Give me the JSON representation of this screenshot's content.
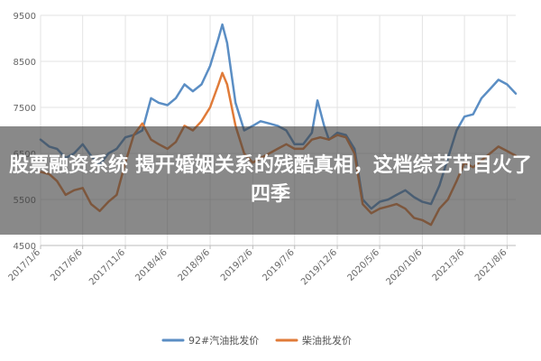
{
  "overlay": {
    "title": "股票融资系统 揭开婚姻关系的残酷真相，这档综艺节目火了四季"
  },
  "chart_data": {
    "type": "line",
    "ylim": [
      4500,
      9500
    ],
    "yticks": [
      4500,
      5500,
      6500,
      7500,
      8500,
      9500
    ],
    "ytick_labels": [
      "4500",
      "5500",
      "6500",
      "7500",
      "8500",
      "9500"
    ],
    "xlim": [
      "2017-01-06",
      "2021-09-06"
    ],
    "xticks": [
      "2017-01-06",
      "2017-06-06",
      "2017-11-06",
      "2018-04-06",
      "2018-09-06",
      "2019-02-06",
      "2019-07-06",
      "2019-12-06",
      "2020-05-06",
      "2020-10-06",
      "2021-03-06",
      "2021-08-06"
    ],
    "xtick_labels": [
      "2017/1/6",
      "2017/6/6",
      "2017/11/6",
      "2018/4/6",
      "2018/9/6",
      "2019/2/6",
      "2019/7/6",
      "2019/12/6",
      "2020/5/6",
      "2020/10/6",
      "2021/3/6",
      "2021/8/6"
    ],
    "grid": true,
    "legend_position": "bottom",
    "series": [
      {
        "name": "92#汽油批发价",
        "color": "#5b8ec4",
        "points": [
          [
            "2017-01-06",
            6800
          ],
          [
            "2017-02-06",
            6650
          ],
          [
            "2017-03-06",
            6600
          ],
          [
            "2017-04-06",
            6400
          ],
          [
            "2017-05-06",
            6500
          ],
          [
            "2017-06-06",
            6700
          ],
          [
            "2017-07-06",
            6450
          ],
          [
            "2017-08-06",
            6250
          ],
          [
            "2017-09-06",
            6500
          ],
          [
            "2017-10-06",
            6600
          ],
          [
            "2017-11-06",
            6850
          ],
          [
            "2017-12-06",
            6900
          ],
          [
            "2018-01-06",
            7000
          ],
          [
            "2018-02-06",
            7700
          ],
          [
            "2018-03-06",
            7600
          ],
          [
            "2018-04-06",
            7550
          ],
          [
            "2018-05-06",
            7700
          ],
          [
            "2018-06-06",
            8000
          ],
          [
            "2018-07-06",
            7850
          ],
          [
            "2018-08-06",
            8000
          ],
          [
            "2018-09-06",
            8400
          ],
          [
            "2018-10-06",
            9000
          ],
          [
            "2018-10-20",
            9300
          ],
          [
            "2018-11-06",
            8900
          ],
          [
            "2018-12-06",
            7600
          ],
          [
            "2019-01-06",
            7000
          ],
          [
            "2019-02-06",
            7100
          ],
          [
            "2019-03-06",
            7200
          ],
          [
            "2019-04-06",
            7150
          ],
          [
            "2019-05-06",
            7100
          ],
          [
            "2019-06-06",
            7000
          ],
          [
            "2019-07-06",
            6700
          ],
          [
            "2019-08-06",
            6700
          ],
          [
            "2019-09-06",
            6950
          ],
          [
            "2019-09-26",
            7650
          ],
          [
            "2019-10-20",
            7100
          ],
          [
            "2019-11-06",
            6800
          ],
          [
            "2019-12-06",
            6950
          ],
          [
            "2020-01-06",
            6900
          ],
          [
            "2020-02-06",
            6600
          ],
          [
            "2020-03-06",
            5500
          ],
          [
            "2020-04-06",
            5300
          ],
          [
            "2020-05-06",
            5450
          ],
          [
            "2020-06-06",
            5500
          ],
          [
            "2020-07-06",
            5600
          ],
          [
            "2020-08-06",
            5700
          ],
          [
            "2020-09-06",
            5550
          ],
          [
            "2020-10-06",
            5450
          ],
          [
            "2020-11-06",
            5400
          ],
          [
            "2020-12-06",
            5800
          ],
          [
            "2021-01-06",
            6400
          ],
          [
            "2021-02-06",
            7000
          ],
          [
            "2021-03-06",
            7300
          ],
          [
            "2021-04-06",
            7350
          ],
          [
            "2021-05-06",
            7700
          ],
          [
            "2021-06-06",
            7900
          ],
          [
            "2021-07-06",
            8100
          ],
          [
            "2021-08-06",
            8000
          ],
          [
            "2021-09-06",
            7800
          ]
        ]
      },
      {
        "name": "柴油批发价",
        "color": "#e07b39",
        "points": [
          [
            "2017-01-06",
            6100
          ],
          [
            "2017-02-06",
            6050
          ],
          [
            "2017-03-06",
            5900
          ],
          [
            "2017-04-06",
            5600
          ],
          [
            "2017-05-06",
            5700
          ],
          [
            "2017-06-06",
            5750
          ],
          [
            "2017-07-06",
            5400
          ],
          [
            "2017-08-06",
            5250
          ],
          [
            "2017-09-06",
            5450
          ],
          [
            "2017-10-06",
            5600
          ],
          [
            "2017-11-06",
            6300
          ],
          [
            "2017-12-06",
            6900
          ],
          [
            "2018-01-06",
            7150
          ],
          [
            "2018-02-06",
            6800
          ],
          [
            "2018-03-06",
            6700
          ],
          [
            "2018-04-06",
            6600
          ],
          [
            "2018-05-06",
            6750
          ],
          [
            "2018-06-06",
            7100
          ],
          [
            "2018-07-06",
            7000
          ],
          [
            "2018-08-06",
            7200
          ],
          [
            "2018-09-06",
            7500
          ],
          [
            "2018-10-06",
            8000
          ],
          [
            "2018-10-20",
            8250
          ],
          [
            "2018-11-06",
            8000
          ],
          [
            "2018-12-06",
            7100
          ],
          [
            "2019-01-06",
            6500
          ],
          [
            "2019-02-06",
            6300
          ],
          [
            "2019-03-06",
            6400
          ],
          [
            "2019-04-06",
            6500
          ],
          [
            "2019-05-06",
            6600
          ],
          [
            "2019-06-06",
            6700
          ],
          [
            "2019-07-06",
            6600
          ],
          [
            "2019-08-06",
            6600
          ],
          [
            "2019-09-06",
            6800
          ],
          [
            "2019-10-06",
            6850
          ],
          [
            "2019-11-06",
            6800
          ],
          [
            "2019-12-06",
            6900
          ],
          [
            "2020-01-06",
            6850
          ],
          [
            "2020-02-06",
            6500
          ],
          [
            "2020-03-06",
            5400
          ],
          [
            "2020-04-06",
            5200
          ],
          [
            "2020-05-06",
            5300
          ],
          [
            "2020-06-06",
            5350
          ],
          [
            "2020-07-06",
            5400
          ],
          [
            "2020-08-06",
            5300
          ],
          [
            "2020-09-06",
            5100
          ],
          [
            "2020-10-06",
            5050
          ],
          [
            "2020-11-06",
            4950
          ],
          [
            "2020-12-06",
            5300
          ],
          [
            "2021-01-06",
            5500
          ],
          [
            "2021-02-06",
            5900
          ],
          [
            "2021-03-06",
            6300
          ],
          [
            "2021-04-06",
            6200
          ],
          [
            "2021-05-06",
            6350
          ],
          [
            "2021-06-06",
            6500
          ],
          [
            "2021-07-06",
            6650
          ],
          [
            "2021-08-06",
            6550
          ],
          [
            "2021-09-06",
            6450
          ]
        ]
      }
    ]
  }
}
